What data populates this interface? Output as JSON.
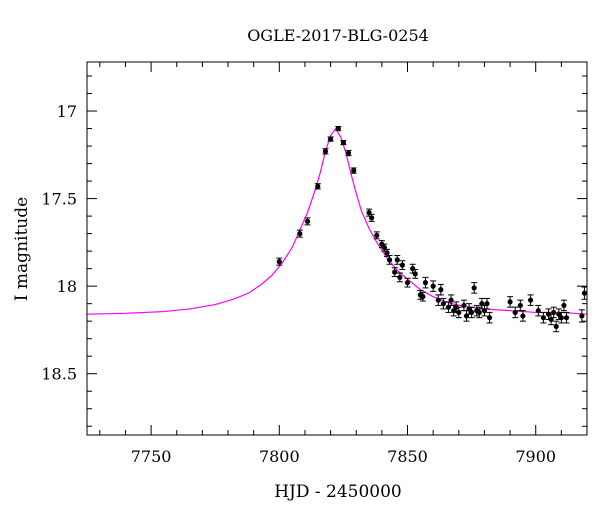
{
  "chart_data": {
    "type": "scatter",
    "title": "OGLE-2017-BLG-0254",
    "xlabel": "HJD - 2450000",
    "ylabel": "I magnitude",
    "xlim": [
      7725,
      7920
    ],
    "ylim": [
      18.85,
      16.72
    ],
    "y_inverted": true,
    "x_ticks": [
      7750,
      7800,
      7850,
      7900
    ],
    "x_tick_labels": [
      "7750",
      "7800",
      "7850",
      "7900"
    ],
    "y_ticks": [
      17.0,
      17.5,
      18.0,
      18.5
    ],
    "y_tick_labels": [
      "17",
      "17.5",
      "18",
      "18.5"
    ],
    "grid": false,
    "colors": {
      "model": "#ff00ff",
      "points": "#000000"
    },
    "model": {
      "name": "",
      "type": "line",
      "x": [
        7725,
        7740,
        7755,
        7765,
        7775,
        7782,
        7788,
        7793,
        7797,
        7801,
        7805,
        7808,
        7811,
        7814,
        7816,
        7818,
        7820,
        7822,
        7824,
        7826,
        7828,
        7830,
        7832,
        7835,
        7838,
        7842,
        7846,
        7850,
        7855,
        7860,
        7866,
        7872,
        7880,
        7890,
        7900,
        7910,
        7920
      ],
      "y": [
        18.16,
        18.155,
        18.145,
        18.13,
        18.105,
        18.075,
        18.04,
        17.99,
        17.94,
        17.87,
        17.78,
        17.68,
        17.58,
        17.45,
        17.35,
        17.23,
        17.14,
        17.1,
        17.15,
        17.24,
        17.36,
        17.47,
        17.57,
        17.67,
        17.75,
        17.84,
        17.91,
        17.96,
        18.02,
        18.06,
        18.095,
        18.115,
        18.13,
        18.14,
        18.15,
        18.15,
        18.16
      ]
    },
    "series": [
      {
        "name": "",
        "type": "scatter",
        "x": [
          7800,
          7808,
          7811,
          7815,
          7818,
          7820,
          7823,
          7825,
          7827,
          7829,
          7835,
          7836,
          7838,
          7840,
          7841,
          7842,
          7843,
          7845,
          7846,
          7847,
          7848,
          7850,
          7852,
          7853,
          7855,
          7856,
          7857,
          7860,
          7862,
          7863,
          7864,
          7866,
          7867,
          7868,
          7869,
          7870,
          7872,
          7873,
          7874,
          7875,
          7876,
          7877,
          7878,
          7879,
          7880,
          7881,
          7882,
          7890,
          7892,
          7894,
          7895,
          7898,
          7901,
          7903,
          7905,
          7906,
          7907,
          7908,
          7909,
          7910,
          7911,
          7912,
          7918,
          7919
        ],
        "y": [
          17.86,
          17.7,
          17.63,
          17.43,
          17.23,
          17.16,
          17.1,
          17.18,
          17.24,
          17.34,
          17.58,
          17.61,
          17.71,
          17.76,
          17.78,
          17.81,
          17.85,
          17.92,
          17.85,
          17.95,
          17.88,
          17.98,
          17.9,
          17.93,
          18.05,
          18.06,
          17.98,
          18.0,
          18.08,
          18.02,
          18.1,
          18.12,
          18.08,
          18.14,
          18.12,
          18.15,
          18.11,
          18.17,
          18.13,
          18.15,
          18.01,
          18.14,
          18.15,
          18.1,
          18.14,
          18.1,
          18.18,
          18.09,
          18.15,
          18.11,
          18.17,
          18.08,
          18.14,
          18.18,
          18.16,
          18.19,
          18.15,
          18.23,
          18.16,
          18.18,
          18.11,
          18.18,
          18.17,
          18.04
        ],
        "err": [
          0.02,
          0.02,
          0.02,
          0.015,
          0.015,
          0.012,
          0.012,
          0.012,
          0.015,
          0.015,
          0.02,
          0.02,
          0.02,
          0.02,
          0.02,
          0.02,
          0.025,
          0.025,
          0.025,
          0.025,
          0.025,
          0.025,
          0.025,
          0.025,
          0.025,
          0.025,
          0.03,
          0.03,
          0.03,
          0.03,
          0.03,
          0.03,
          0.03,
          0.03,
          0.03,
          0.03,
          0.03,
          0.03,
          0.03,
          0.03,
          0.03,
          0.03,
          0.03,
          0.03,
          0.03,
          0.03,
          0.03,
          0.03,
          0.03,
          0.03,
          0.03,
          0.03,
          0.03,
          0.03,
          0.03,
          0.03,
          0.03,
          0.03,
          0.03,
          0.03,
          0.03,
          0.03,
          0.035,
          0.035
        ]
      }
    ]
  }
}
